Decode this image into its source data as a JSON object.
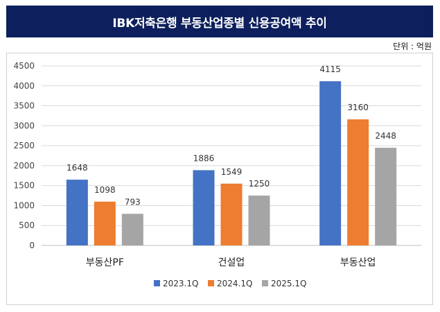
{
  "title": "IBK저축은행 부동산업종별 신용공여액 추이",
  "unit_label": "단위 : 억원",
  "colors": [
    "#4472c4",
    "#ed7d31",
    "#a5a5a5"
  ],
  "chart_data": {
    "type": "bar",
    "categories": [
      "부동산PF",
      "건설업",
      "부동산업"
    ],
    "series": [
      {
        "name": "2023.1Q",
        "values": [
          1648,
          1886,
          4115
        ]
      },
      {
        "name": "2024.1Q",
        "values": [
          1098,
          1549,
          3160
        ]
      },
      {
        "name": "2025.1Q",
        "values": [
          793,
          1250,
          2448
        ]
      }
    ],
    "ylim": [
      0,
      4500
    ],
    "yticks": [
      0,
      500,
      1000,
      1500,
      2000,
      2500,
      3000,
      3500,
      4000,
      4500
    ],
    "grid": true,
    "legend_position": "bottom"
  }
}
